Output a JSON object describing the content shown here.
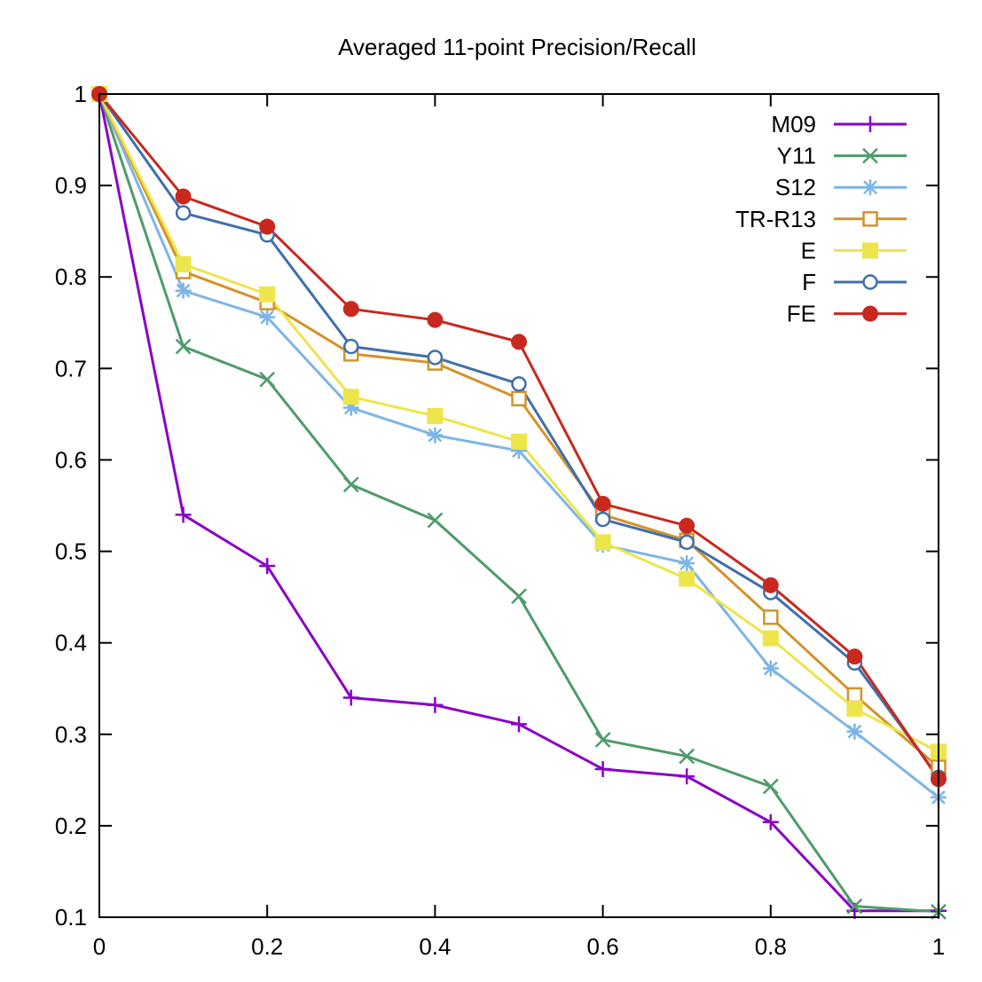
{
  "chart_data": {
    "type": "line",
    "title": "Averaged 11-point Precision/Recall",
    "xlabel": "",
    "ylabel": "",
    "xlim": [
      0,
      1
    ],
    "ylim": [
      0.1,
      1
    ],
    "x_ticks": [
      "0",
      "0.2",
      "0.4",
      "0.6",
      "0.8",
      "1"
    ],
    "y_ticks": [
      "0.1",
      "0.2",
      "0.3",
      "0.4",
      "0.5",
      "0.6",
      "0.7",
      "0.8",
      "0.9",
      "1"
    ],
    "grid": false,
    "legend_position": "top-right",
    "x": [
      0,
      0.1,
      0.2,
      0.3,
      0.4,
      0.5,
      0.6,
      0.7,
      0.8,
      0.9,
      1.0
    ],
    "series": [
      {
        "name": "M09",
        "color": "#8b00c8",
        "marker": "plus",
        "values": [
          1.0,
          0.54,
          0.484,
          0.34,
          0.332,
          0.311,
          0.262,
          0.254,
          0.204,
          0.107,
          0.107
        ]
      },
      {
        "name": "Y11",
        "color": "#4e9b6b",
        "marker": "cross",
        "values": [
          1.0,
          0.724,
          0.688,
          0.573,
          0.534,
          0.451,
          0.294,
          0.276,
          0.243,
          0.112,
          0.106
        ]
      },
      {
        "name": "S12",
        "color": "#7db5e6",
        "marker": "star",
        "values": [
          1.0,
          0.785,
          0.756,
          0.657,
          0.627,
          0.61,
          0.507,
          0.487,
          0.372,
          0.303,
          0.231
        ]
      },
      {
        "name": "TR-R13",
        "color": "#d4922a",
        "marker": "open-square",
        "values": [
          1.0,
          0.806,
          0.772,
          0.716,
          0.706,
          0.667,
          0.54,
          0.512,
          0.428,
          0.343,
          0.264
        ]
      },
      {
        "name": "E",
        "color": "#ede54c",
        "marker": "filled-square",
        "values": [
          1.0,
          0.814,
          0.781,
          0.669,
          0.648,
          0.62,
          0.51,
          0.47,
          0.405,
          0.328,
          0.281
        ]
      },
      {
        "name": "F",
        "color": "#3f6fad",
        "marker": "open-circle",
        "values": [
          1.0,
          0.87,
          0.846,
          0.724,
          0.712,
          0.683,
          0.535,
          0.51,
          0.455,
          0.378,
          0.253
        ]
      },
      {
        "name": "FE",
        "color": "#c8281e",
        "marker": "filled-circle",
        "values": [
          1.0,
          0.888,
          0.855,
          0.765,
          0.753,
          0.729,
          0.552,
          0.528,
          0.463,
          0.385,
          0.251
        ]
      }
    ]
  }
}
